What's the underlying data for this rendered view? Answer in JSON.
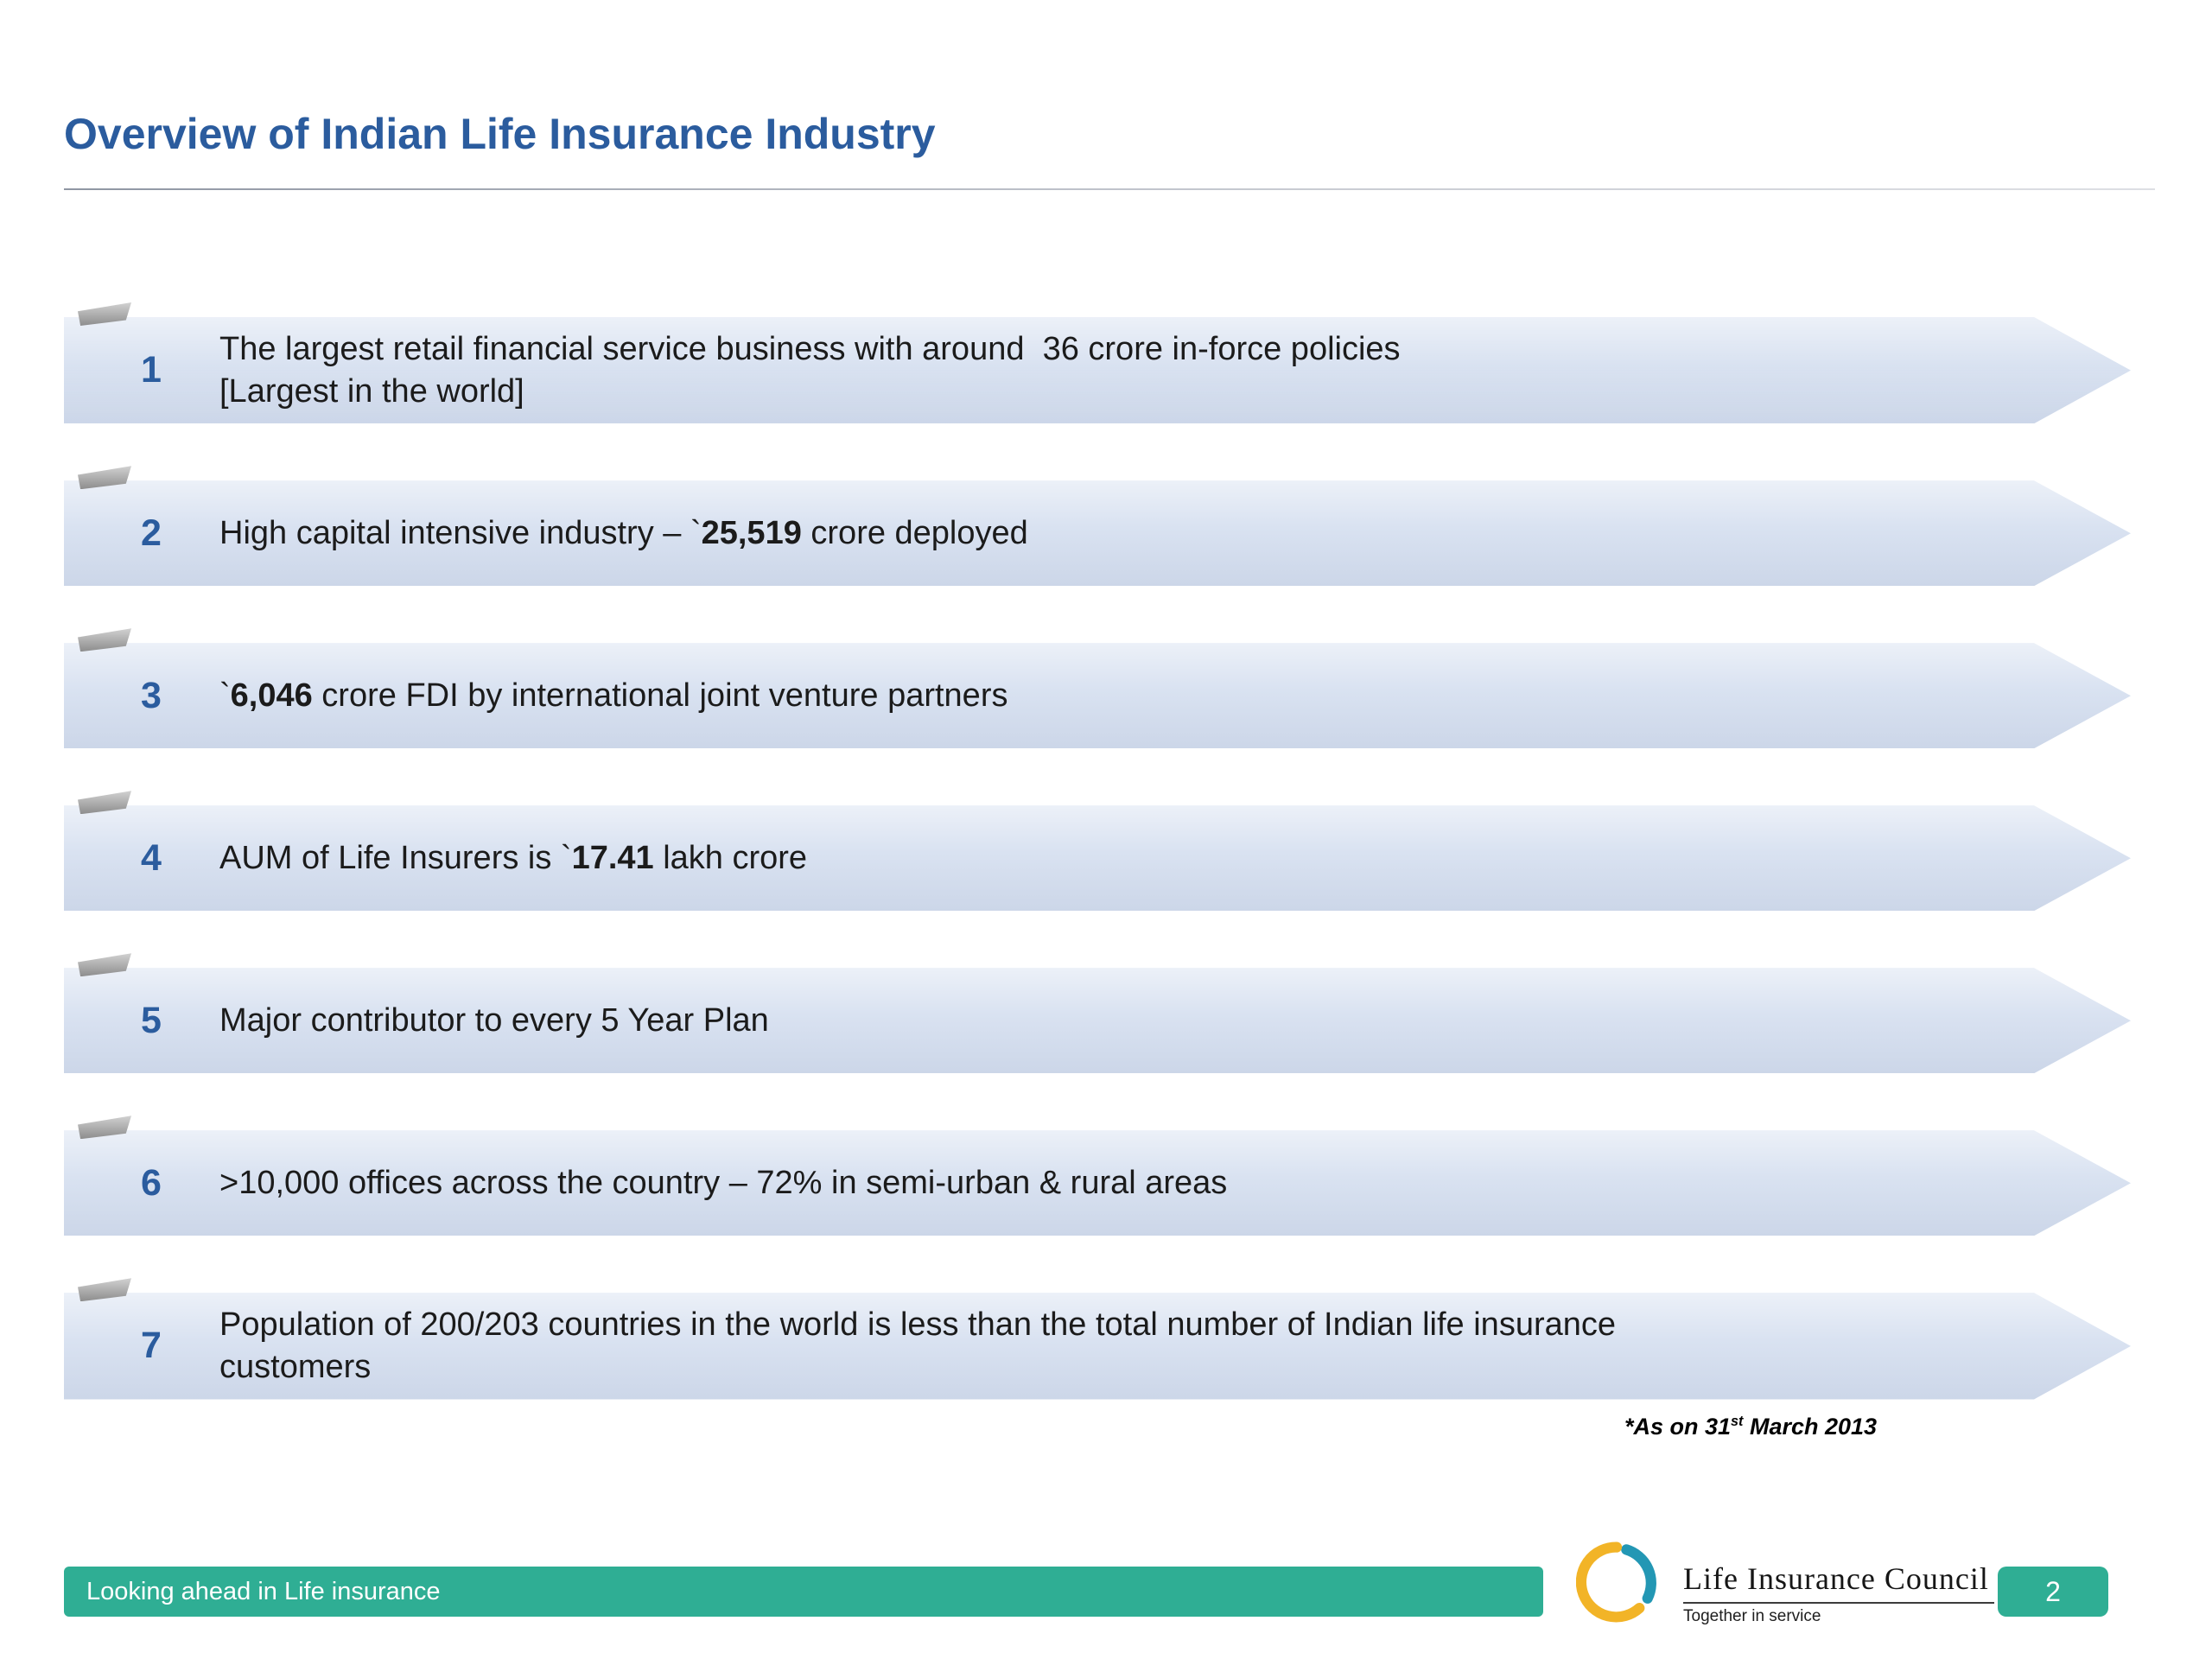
{
  "title": "Overview of Indian Life Insurance Industry",
  "items": [
    {
      "number": "1",
      "parts": [
        {
          "t": "The largest retail financial service business with around  36 crore in-force policies"
        },
        {
          "br": true
        },
        {
          "t": "[Largest in the world]"
        }
      ]
    },
    {
      "number": "2",
      "parts": [
        {
          "t": "High capital intensive industry – `"
        },
        {
          "t": "25,519",
          "b": true
        },
        {
          "t": " crore deployed"
        }
      ]
    },
    {
      "number": "3",
      "parts": [
        {
          "t": "`"
        },
        {
          "t": "6,046",
          "b": true
        },
        {
          "t": " crore FDI by international joint venture partners"
        }
      ]
    },
    {
      "number": "4",
      "parts": [
        {
          "t": "AUM of Life Insurers is `"
        },
        {
          "t": "17.41",
          "b": true
        },
        {
          "t": " lakh crore"
        }
      ]
    },
    {
      "number": "5",
      "parts": [
        {
          "t": "Major contributor to every 5 Year Plan"
        }
      ]
    },
    {
      "number": "6",
      "parts": [
        {
          "t": ">10,000 offices across the country – 72% in semi-urban & rural areas"
        }
      ]
    },
    {
      "number": "7",
      "parts": [
        {
          "t": "Population of 200/203 countries in the world is less than the total number of Indian life insurance"
        },
        {
          "br": true
        },
        {
          "t": "customers"
        }
      ]
    }
  ],
  "footnote": {
    "parts": [
      {
        "t": "*As on 31"
      },
      {
        "t": "st",
        "sup": true
      },
      {
        "t": " March 2013"
      }
    ]
  },
  "footer": {
    "banner_text": "Looking ahead in Life insurance",
    "logo_title": "Life Insurance Council",
    "logo_tagline": "Together in service",
    "page_number": "2"
  },
  "colors": {
    "title_blue": "#2b5c9e",
    "banner_fill": "#d9e2f1",
    "footer_green": "#2fae94",
    "logo_yellow": "#f2b427",
    "logo_teal": "#2397b4"
  }
}
